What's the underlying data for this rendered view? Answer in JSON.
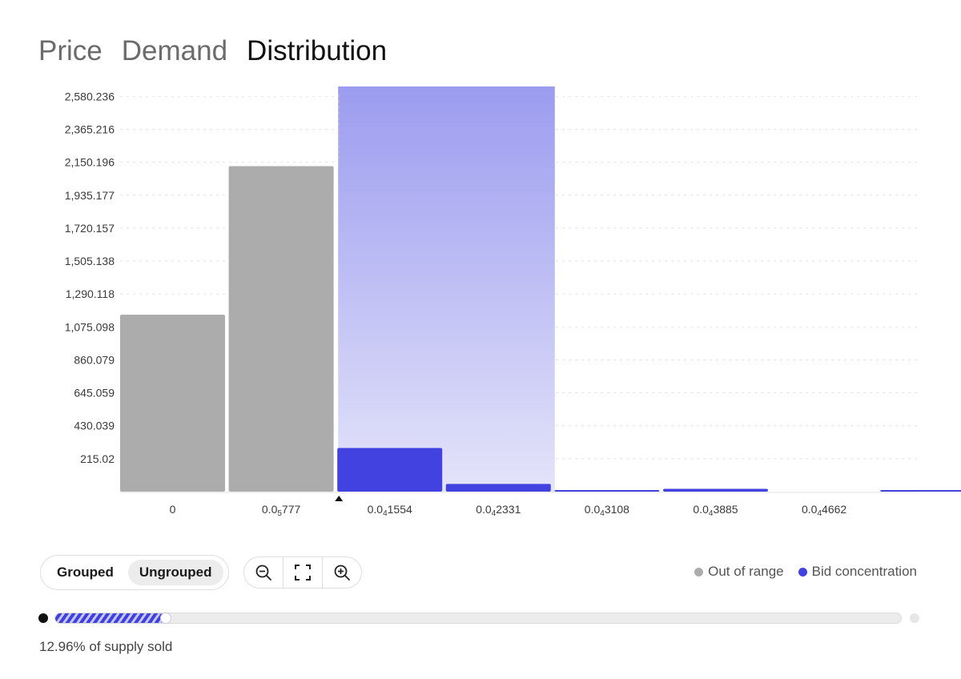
{
  "tabs": [
    {
      "label": "Price",
      "active": false
    },
    {
      "label": "Demand",
      "active": false
    },
    {
      "label": "Distribution",
      "active": true
    }
  ],
  "chart_data": {
    "type": "bar",
    "y_ticks": [
      "2,580.236",
      "2,365.216",
      "2,150.196",
      "1,935.177",
      "1,720.157",
      "1,505.138",
      "1,290.118",
      "1,075.098",
      "860.079",
      "645.059",
      "430.039",
      "215.02"
    ],
    "y_tick_values": [
      2580.236,
      2365.216,
      2150.196,
      1935.177,
      1720.157,
      1505.138,
      1290.118,
      1075.098,
      860.079,
      645.059,
      430.039,
      215.02
    ],
    "ylim": [
      0,
      2645
    ],
    "x_ticks": [
      {
        "prefix": "0",
        "sub": "",
        "suffix": ""
      },
      {
        "prefix": "0.0",
        "sub": "5",
        "suffix": "777"
      },
      {
        "prefix": "0.0",
        "sub": "4",
        "suffix": "1554"
      },
      {
        "prefix": "0.0",
        "sub": "4",
        "suffix": "2331"
      },
      {
        "prefix": "0.0",
        "sub": "4",
        "suffix": "3108"
      },
      {
        "prefix": "0.0",
        "sub": "4",
        "suffix": "3885"
      },
      {
        "prefix": "0.0",
        "sub": "4",
        "suffix": "4662"
      }
    ],
    "bars": [
      {
        "value": 1155,
        "group": "out_of_range"
      },
      {
        "value": 2125,
        "group": "out_of_range"
      },
      {
        "value": 285,
        "group": "bid_concentration"
      },
      {
        "value": 50,
        "group": "bid_concentration"
      },
      {
        "value": 6,
        "group": "bid_concentration"
      },
      {
        "value": 18,
        "group": "bid_concentration"
      },
      {
        "value": 0,
        "group": "bid_concentration"
      },
      {
        "value": 6,
        "group": "bid_concentration"
      }
    ],
    "highlight_range_bins": [
      2,
      3
    ],
    "marker_bin_boundary": 2,
    "colors": {
      "out_of_range": "#acacac",
      "bid_concentration": "#4242e0",
      "highlight_top": "#9c9cf0",
      "highlight_bottom": "#e4e4fa"
    }
  },
  "controls": {
    "grouped_label": "Grouped",
    "ungrouped_label": "Ungrouped",
    "selected": "Ungrouped",
    "zoom_out_icon": "zoom-out-icon",
    "fit_icon": "fit-screen-icon",
    "zoom_in_icon": "zoom-in-icon"
  },
  "legend": {
    "out_of_range": "Out of range",
    "bid_concentration": "Bid concentration"
  },
  "progress": {
    "fraction": 0.1296,
    "label": "12.96% of supply sold"
  }
}
